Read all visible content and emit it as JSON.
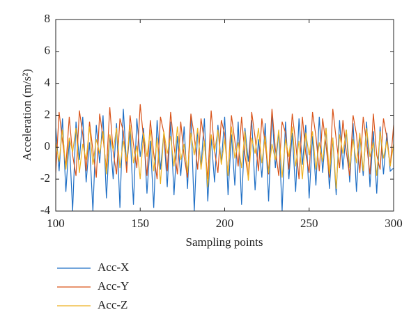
{
  "chart_data": {
    "type": "line",
    "xlabel": "Sampling points",
    "ylabel": "Acceleration (m/s²)",
    "xlim": [
      100,
      300
    ],
    "xticks": [
      100,
      150,
      200,
      250,
      300
    ],
    "ylim": [
      -4,
      8
    ],
    "yticks": [
      -4,
      -2,
      0,
      2,
      4,
      6,
      8
    ],
    "grid": false,
    "legend": "below-left",
    "x": [
      100,
      102,
      104,
      106,
      108,
      110,
      112,
      114,
      116,
      118,
      120,
      122,
      124,
      126,
      128,
      130,
      132,
      134,
      136,
      138,
      140,
      142,
      144,
      146,
      148,
      150,
      152,
      154,
      156,
      158,
      160,
      162,
      164,
      166,
      168,
      170,
      172,
      174,
      176,
      178,
      180,
      182,
      184,
      186,
      188,
      190,
      192,
      194,
      196,
      198,
      200,
      202,
      204,
      206,
      208,
      210,
      212,
      214,
      216,
      218,
      220,
      222,
      224,
      226,
      228,
      230,
      232,
      234,
      236,
      238,
      240,
      242,
      244,
      246,
      248,
      250,
      252,
      254,
      256,
      258,
      260,
      262,
      264,
      266,
      268,
      270,
      272,
      274,
      276,
      278,
      280,
      282,
      284,
      286,
      288,
      290,
      292,
      294,
      296,
      298,
      300
    ],
    "series": [
      {
        "name": "Acc-X",
        "color": "#1f6fc5",
        "values": [
          1.2,
          -1.5,
          1.8,
          -2.8,
          0.5,
          -4.0,
          1.6,
          -0.8,
          1.9,
          -2.2,
          0.3,
          -4.0,
          1.4,
          -1.0,
          2.0,
          -3.2,
          0.8,
          -2.0,
          1.5,
          -3.8,
          2.4,
          -1.2,
          1.0,
          -3.6,
          1.8,
          -0.6,
          1.2,
          -2.9,
          0.4,
          -3.8,
          1.7,
          -1.4,
          0.9,
          -2.5,
          1.6,
          -3.0,
          0.7,
          -1.8,
          1.3,
          -2.6,
          2.0,
          -4.0,
          1.1,
          -1.2,
          1.8,
          -3.4,
          0.6,
          -2.2,
          1.4,
          -1.0,
          1.9,
          -3.0,
          0.8,
          -2.4,
          1.6,
          -3.6,
          1.2,
          -0.9,
          1.7,
          -2.7,
          0.5,
          -1.9,
          1.5,
          -3.4,
          2.2,
          -1.3,
          1.0,
          -4.0,
          1.6,
          -2.0,
          0.9,
          -2.8,
          1.8,
          -1.1,
          1.4,
          -3.2,
          0.7,
          -2.4,
          1.9,
          -1.6,
          1.2,
          -2.6,
          0.6,
          -3.0,
          1.7,
          -1.4,
          1.1,
          -2.2,
          1.5,
          -2.8,
          0.8,
          -1.8,
          1.6,
          -2.5,
          1.0,
          -2.9,
          1.3,
          -1.7,
          0.9,
          -1.5,
          -1.3
        ]
      },
      {
        "name": "Acc-Y",
        "color": "#d95319",
        "values": [
          -1.6,
          2.2,
          0.4,
          -1.2,
          1.9,
          -0.5,
          -1.8,
          2.3,
          0.8,
          -1.5,
          1.6,
          -0.2,
          -1.9,
          2.1,
          0.6,
          -1.4,
          2.5,
          -0.3,
          -1.7,
          1.8,
          1.0,
          -1.6,
          2.0,
          0.2,
          -1.3,
          2.7,
          0.5,
          -1.8,
          1.7,
          -0.4,
          -2.0,
          1.9,
          0.9,
          -1.5,
          2.2,
          0.1,
          -1.7,
          1.6,
          -0.6,
          -1.9,
          2.1,
          0.7,
          -1.4,
          1.8,
          0.3,
          -2.0,
          2.3,
          -0.2,
          -1.6,
          1.7,
          0.8,
          -1.8,
          2.0,
          0.4,
          -1.2,
          1.9,
          -0.5,
          -1.9,
          2.2,
          0.6,
          -1.5,
          1.8,
          0.2,
          -1.7,
          2.4,
          -0.1,
          -1.8,
          1.6,
          0.9,
          -1.4,
          2.1,
          0.3,
          -2.0,
          1.9,
          -0.4,
          -1.6,
          2.2,
          0.7,
          -1.5,
          1.8,
          0.1,
          -1.9,
          2.4,
          0.5,
          -1.3,
          1.7,
          -0.3,
          -1.8,
          2.0,
          0.8,
          -1.6,
          1.9,
          0.2,
          -1.7,
          2.1,
          -0.5,
          -1.4,
          1.8,
          0.6,
          -1.2,
          1.4
        ]
      },
      {
        "name": "Acc-Z",
        "color": "#edb120",
        "values": [
          0.3,
          -0.9,
          1.1,
          -1.4,
          0.6,
          -0.3,
          1.2,
          -1.6,
          0.2,
          -0.8,
          1.3,
          -1.1,
          0.5,
          -0.4,
          1.0,
          -1.7,
          0.8,
          -0.2,
          1.2,
          -1.3,
          0.4,
          -0.9,
          1.4,
          -1.0,
          0.1,
          -2.0,
          0.9,
          -0.6,
          1.1,
          -1.5,
          0.6,
          -2.3,
          1.0,
          -0.4,
          0.7,
          -1.2,
          1.3,
          -0.8,
          0.2,
          -1.6,
          0.9,
          -0.5,
          1.2,
          -1.4,
          0.4,
          -2.5,
          0.8,
          -0.3,
          1.1,
          -1.1,
          0.5,
          -1.8,
          1.3,
          -0.7,
          0.3,
          -1.3,
          1.0,
          -2.1,
          0.6,
          -0.4,
          1.2,
          -1.0,
          0.7,
          -1.6,
          0.2,
          -0.8,
          1.1,
          -1.9,
          0.5,
          -0.6,
          1.3,
          -1.2,
          0.4,
          -2.0,
          0.9,
          -0.5,
          1.0,
          -1.4,
          0.3,
          -0.9,
          1.2,
          -1.7,
          0.6,
          -2.6,
          0.8,
          -0.4,
          1.1,
          -1.3,
          0.5,
          -1.0,
          0.9,
          -1.5,
          1.2,
          -0.6,
          0.3,
          -1.8,
          1.0,
          -0.7,
          0.4,
          -1.2,
          0.2
        ]
      }
    ]
  }
}
